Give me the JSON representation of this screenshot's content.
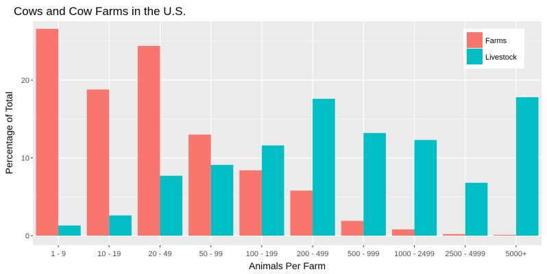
{
  "chart_data": {
    "type": "bar",
    "title": "Cows and Cow Farms in the U.S.",
    "xlabel": "Animals Per Farm",
    "ylabel": "Percentage of Total",
    "categories": [
      "1 - 9",
      "10 - 19",
      "20 - 49",
      "50 - 99",
      "100 - 199",
      "200 - 499",
      "500 - 999",
      "1000 - 2499",
      "2500 - 4999",
      "5000+"
    ],
    "series": [
      {
        "name": "Farms",
        "color": "#F8766D",
        "values": [
          26.6,
          18.8,
          24.4,
          13.0,
          8.4,
          5.8,
          1.9,
          0.8,
          0.2,
          0.1
        ]
      },
      {
        "name": "Livestock",
        "color": "#00BFC4",
        "values": [
          1.3,
          2.6,
          7.7,
          9.1,
          11.6,
          17.6,
          13.2,
          12.3,
          6.8,
          17.8
        ]
      }
    ],
    "ylim": [
      0,
      27.9
    ],
    "yticks": [
      0,
      10,
      20
    ],
    "grid": true,
    "legend_position": "top-right",
    "panel_background": "#EBEBEB",
    "grid_color": "#FFFFFF"
  }
}
